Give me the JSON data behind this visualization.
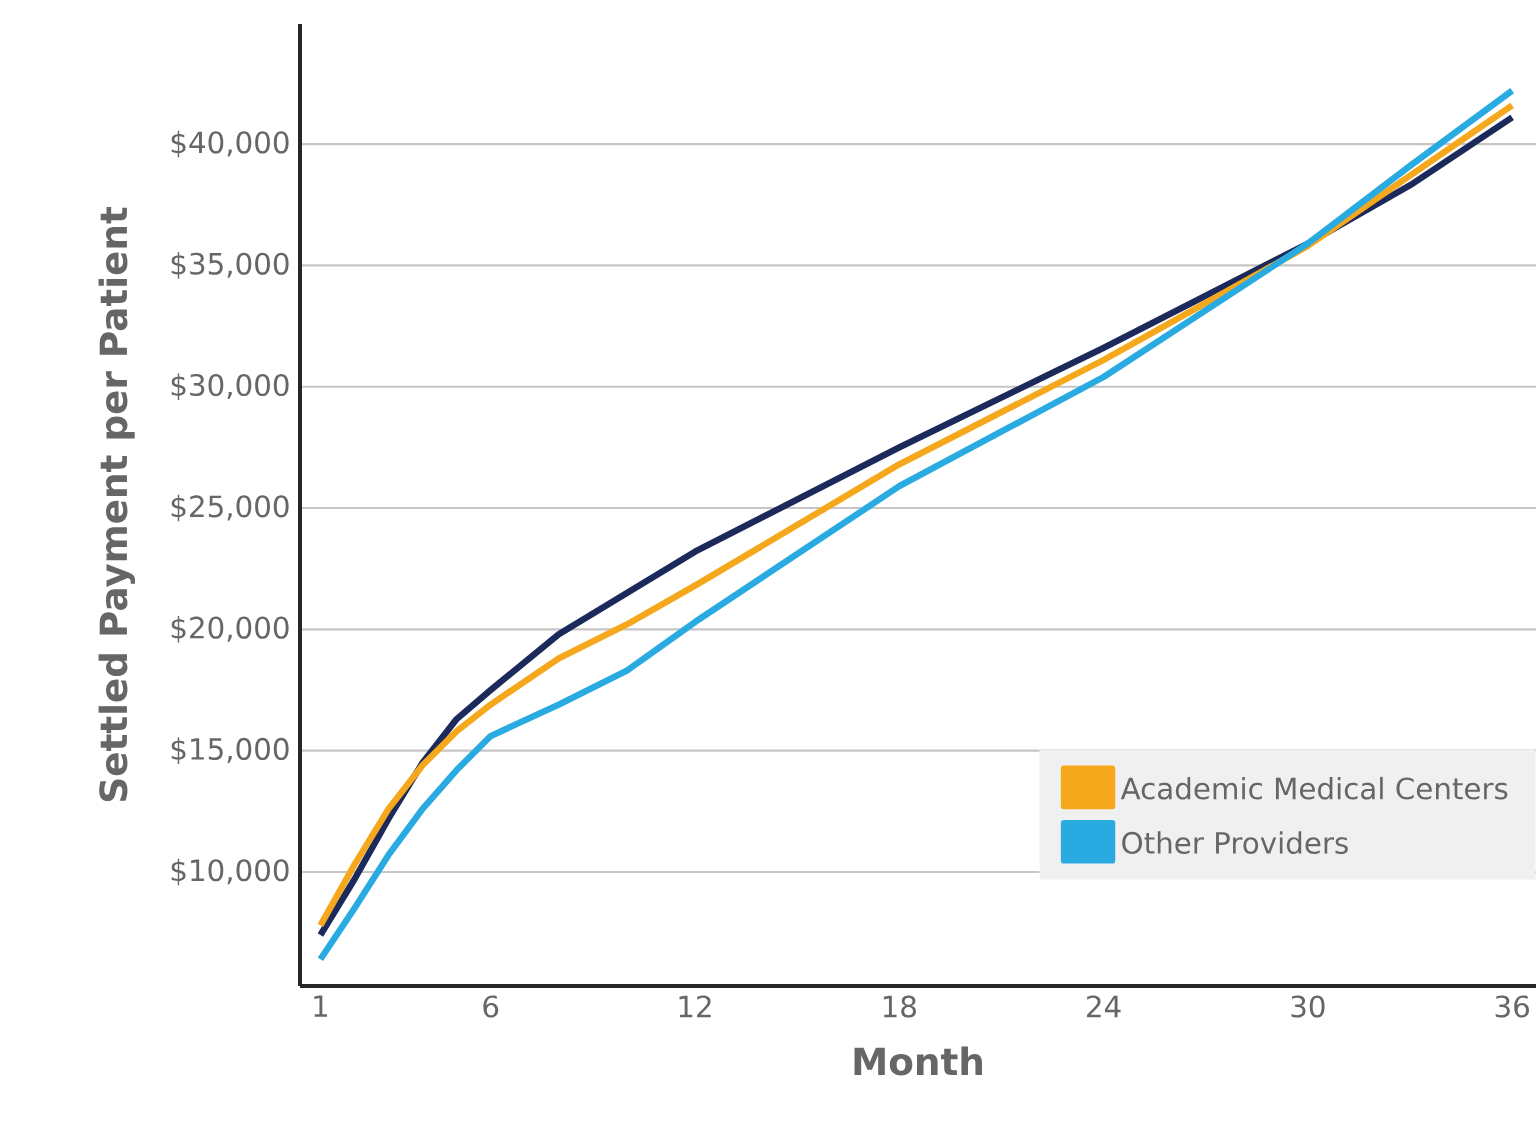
{
  "chart_data": {
    "type": "line",
    "xlabel": "Month",
    "ylabel": "Settled Payment per Patient",
    "x": [
      1,
      2,
      3,
      4,
      5,
      6,
      8,
      10,
      12,
      18,
      24,
      30,
      33,
      36
    ],
    "series": [
      {
        "color": "#1b2a5a",
        "values": [
          7400,
          9700,
          12200,
          14500,
          16300,
          17500,
          19800,
          21500,
          23200,
          27500,
          31600,
          35900,
          38300,
          41100
        ]
      },
      {
        "name": "Academic Medical Centers",
        "color": "#f5a81c",
        "values": [
          7800,
          10300,
          12600,
          14400,
          15800,
          16900,
          18800,
          20200,
          21800,
          26800,
          31100,
          35800,
          38700,
          41600
        ]
      },
      {
        "name": "Other Providers",
        "color": "#29abe2",
        "values": [
          6400,
          8500,
          10700,
          12600,
          14200,
          15600,
          16900,
          18300,
          20300,
          25900,
          30400,
          35900,
          39100,
          42200
        ]
      }
    ],
    "xlim": [
      0.4,
      36.7
    ],
    "ylim": [
      5300,
      44950
    ],
    "xticks": [
      1,
      6,
      12,
      18,
      24,
      30,
      36
    ],
    "yticks": [
      {
        "value": 10000,
        "label": "$10,000"
      },
      {
        "value": 15000,
        "label": "$15,000"
      },
      {
        "value": 20000,
        "label": "$20,000"
      },
      {
        "value": 25000,
        "label": "$25,000"
      },
      {
        "value": 30000,
        "label": "$30,000"
      },
      {
        "value": 35000,
        "label": "$35,000"
      },
      {
        "value": 40000,
        "label": "$40,000"
      }
    ],
    "grid": "y",
    "legend": "bottom right",
    "line_style": "solid",
    "marker": "none"
  }
}
